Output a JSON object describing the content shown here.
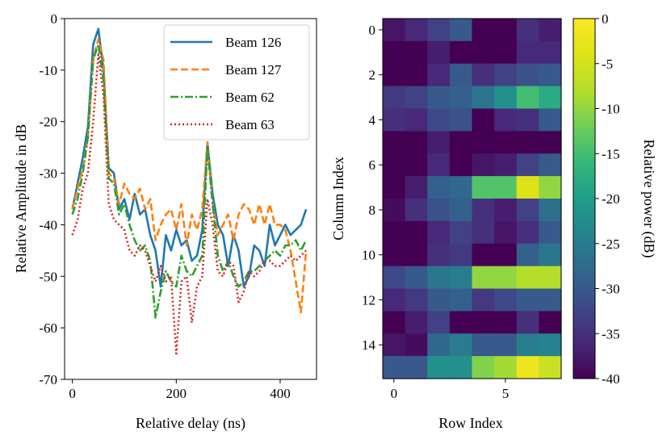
{
  "chart_data": [
    {
      "type": "line",
      "xlabel": "Relative delay (ns)",
      "ylabel": "Relative Amplitude in dB",
      "xlim": [
        -15,
        470
      ],
      "ylim": [
        -70,
        0
      ],
      "xticks": [
        0,
        200,
        400
      ],
      "yticks": [
        0,
        -10,
        -20,
        -30,
        -40,
        -50,
        -60,
        -70
      ],
      "legend_position": "top-right",
      "x": [
        0,
        10,
        20,
        30,
        40,
        50,
        60,
        70,
        80,
        90,
        100,
        110,
        120,
        130,
        140,
        150,
        160,
        170,
        180,
        190,
        200,
        210,
        220,
        230,
        240,
        250,
        260,
        270,
        280,
        290,
        300,
        310,
        320,
        330,
        340,
        350,
        360,
        370,
        380,
        390,
        400,
        410,
        420,
        430,
        440,
        450
      ],
      "series": [
        {
          "name": "Beam 126",
          "color": "#1f77b4",
          "style": "solid",
          "values": [
            -37,
            -32,
            -27,
            -21,
            -5,
            -2,
            -10,
            -29,
            -30,
            -37,
            -35,
            -39,
            -34,
            -38,
            -37,
            -42,
            -45,
            -52,
            -42,
            -45,
            -41,
            -44,
            -43,
            -47,
            -46,
            -41,
            -24,
            -34,
            -40,
            -42,
            -48,
            -42,
            -45,
            -52,
            -50,
            -44,
            -45,
            -48,
            -40,
            -44,
            -42,
            -40,
            -42,
            -41,
            -40,
            -37
          ]
        },
        {
          "name": "Beam 127",
          "color": "#ff7f0e",
          "style": "dashed",
          "values": [
            -37,
            -33,
            -29,
            -23,
            -8,
            -4,
            -8,
            -30,
            -31,
            -36,
            -32,
            -34,
            -35,
            -33,
            -37,
            -35,
            -43,
            -40,
            -38,
            -37,
            -41,
            -36,
            -44,
            -38,
            -41,
            -37,
            -24,
            -36,
            -42,
            -40,
            -38,
            -43,
            -38,
            -36,
            -37,
            -40,
            -36,
            -40,
            -36,
            -40,
            -40,
            -41,
            -45,
            -51,
            -57,
            -45
          ]
        },
        {
          "name": "Beam 62",
          "color": "#2ca02c",
          "style": "dashdot",
          "values": [
            -38,
            -35,
            -30,
            -23,
            -8,
            -5,
            -12,
            -31,
            -32,
            -38,
            -36,
            -40,
            -43,
            -45,
            -44,
            -47,
            -58,
            -53,
            -49,
            -51,
            -52,
            -46,
            -49,
            -50,
            -48,
            -46,
            -25,
            -36,
            -46,
            -49,
            -47,
            -50,
            -52,
            -51,
            -49,
            -49,
            -48,
            -47,
            -46,
            -45,
            -46,
            -44,
            -44,
            -43,
            -45,
            -43
          ]
        },
        {
          "name": "Beam 63",
          "color": "#d62728",
          "style": "dotted",
          "values": [
            -42,
            -39,
            -33,
            -30,
            -20,
            -7,
            -15,
            -36,
            -39,
            -40,
            -41,
            -45,
            -46,
            -44,
            -45,
            -48,
            -51,
            -48,
            -51,
            -50,
            -65,
            -51,
            -50,
            -59,
            -52,
            -50,
            -35,
            -40,
            -49,
            -50,
            -47,
            -48,
            -55,
            -53,
            -49,
            -50,
            -49,
            -47,
            -47,
            -48,
            -48,
            -47,
            -46,
            -47,
            -46,
            -45
          ]
        }
      ]
    },
    {
      "type": "heatmap",
      "xlabel": "Row Index",
      "ylabel": "Column Index",
      "xticks": [
        0,
        5
      ],
      "yticks": [
        0,
        2,
        4,
        6,
        8,
        10,
        12,
        14
      ],
      "colorbar": {
        "label": "Relative power (dB)",
        "min": -40,
        "max": 0,
        "ticks": [
          0,
          -5,
          -10,
          -15,
          -20,
          -25,
          -30,
          -35,
          -40
        ]
      },
      "values": [
        [
          -38,
          -36,
          -33,
          -30,
          -40,
          -40,
          -35,
          -37
        ],
        [
          -40,
          -40,
          -37,
          -40,
          -40,
          -40,
          -36,
          -36
        ],
        [
          -40,
          -40,
          -36,
          -30,
          -35,
          -33,
          -31,
          -30
        ],
        [
          -34,
          -33,
          -30,
          -29,
          -26,
          -22,
          -15,
          -18
        ],
        [
          -35,
          -36,
          -32,
          -31,
          -40,
          -36,
          -35,
          -30
        ],
        [
          -40,
          -40,
          -37,
          -40,
          -40,
          -40,
          -40,
          -40
        ],
        [
          -40,
          -40,
          -36,
          -40,
          -38,
          -37,
          -33,
          -30
        ],
        [
          -40,
          -37,
          -29,
          -28,
          -14,
          -14,
          -4,
          -10
        ],
        [
          -39,
          -35,
          -31,
          -29,
          -35,
          -37,
          -33,
          -27
        ],
        [
          -40,
          -40,
          -36,
          -33,
          -35,
          -38,
          -35,
          -30
        ],
        [
          -40,
          -40,
          -35,
          -34,
          -40,
          -40,
          -29,
          -26
        ],
        [
          -32,
          -30,
          -26,
          -25,
          -10,
          -10,
          -8,
          -8
        ],
        [
          -36,
          -34,
          -30,
          -29,
          -34,
          -32,
          -30,
          -30
        ],
        [
          -40,
          -37,
          -33,
          -40,
          -40,
          -40,
          -35,
          -40
        ],
        [
          -38,
          -39,
          -28,
          -25,
          -30,
          -30,
          -25,
          -24
        ],
        [
          -30,
          -30,
          -22,
          -22,
          -11,
          -9,
          -2,
          -6
        ]
      ]
    }
  ]
}
